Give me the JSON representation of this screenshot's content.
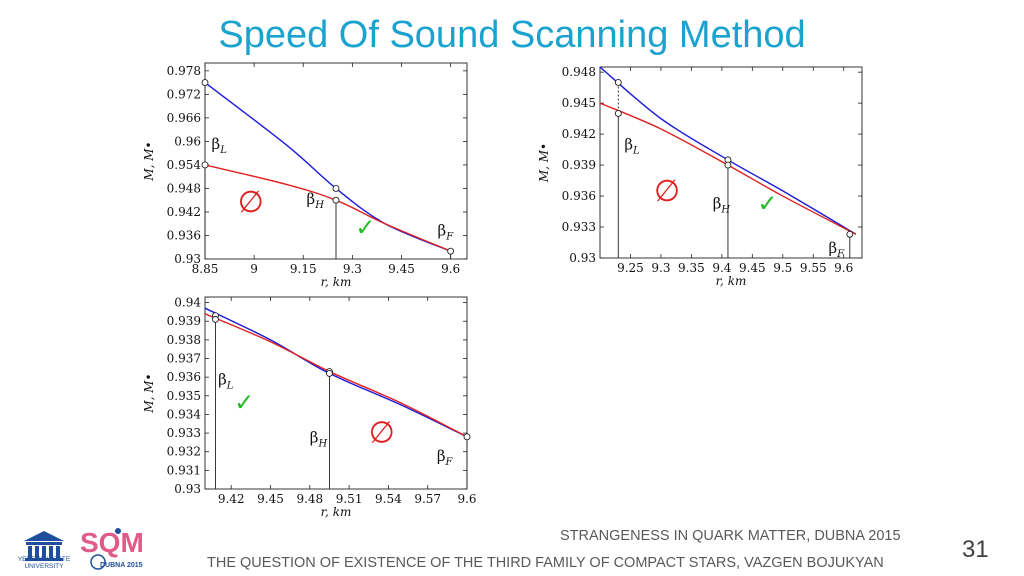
{
  "title": "Speed Of Sound Scanning Method",
  "footer": {
    "line1": "STRANGENESS IN QUARK MATTER,  DUBNA 2015",
    "line2": "THE QUESTION OF EXISTENCE OF THE THIRD FAMILY OF COMPACT STARS, VAZGEN BOJUKYAN",
    "page_number": "31"
  },
  "logos": {
    "ysu": "YEREVAN STATE UNIVERSITY",
    "sqm_main": "SQM",
    "sqm_sub": "DUBNA 2015"
  },
  "colors": {
    "title": "#1aa3cf",
    "blue_curve": "#1a1adb",
    "red_curve": "#e02020",
    "check": "#22bb22",
    "empty_set": "#e02020"
  },
  "chart_data": [
    {
      "type": "line",
      "xlabel": "r, km",
      "ylabel": "M, M•",
      "xlim": [
        8.85,
        9.65
      ],
      "ylim": [
        0.93,
        0.98
      ],
      "xticks": [
        8.85,
        9,
        9.15,
        9.3,
        9.45,
        9.6
      ],
      "xtick_labels": [
        "8.85",
        "9",
        "9.15",
        "9.3",
        "9.45",
        "9.6"
      ],
      "yticks": [
        0.93,
        0.936,
        0.942,
        0.948,
        0.954,
        0.96,
        0.966,
        0.972,
        0.978
      ],
      "ytick_labels": [
        "0.93",
        "0.936",
        "0.942",
        "0.948",
        "0.954",
        "0.96",
        "0.966",
        "0.972",
        "0.978"
      ],
      "series": [
        {
          "name": "blue",
          "x": [
            8.85,
            9.1,
            9.25,
            9.4,
            9.6
          ],
          "y": [
            0.975,
            0.959,
            0.948,
            0.939,
            0.932
          ]
        },
        {
          "name": "red",
          "x": [
            8.85,
            9.1,
            9.25,
            9.4,
            9.6
          ],
          "y": [
            0.954,
            0.949,
            0.945,
            0.939,
            0.932
          ]
        }
      ],
      "markers": [
        {
          "x": 8.85,
          "y": 0.975
        },
        {
          "x": 8.85,
          "y": 0.954
        },
        {
          "x": 9.25,
          "y": 0.948
        },
        {
          "x": 9.25,
          "y": 0.945
        },
        {
          "x": 9.6,
          "y": 0.932
        }
      ],
      "annotations": [
        {
          "text": "β",
          "sub": "L",
          "x": 8.87,
          "y": 0.958
        },
        {
          "text": "β",
          "sub": "H",
          "x": 9.16,
          "y": 0.944
        },
        {
          "text": "β",
          "sub": "F",
          "x": 9.56,
          "y": 0.936
        },
        {
          "text": "∅",
          "x": 8.99,
          "y": 0.942,
          "kind": "empty"
        },
        {
          "text": "✓",
          "x": 9.34,
          "y": 0.936,
          "kind": "check"
        }
      ]
    },
    {
      "type": "line",
      "xlabel": "r, km",
      "ylabel": "M, M•",
      "xlim": [
        9.2,
        9.63
      ],
      "ylim": [
        0.93,
        0.9485
      ],
      "xticks": [
        9.25,
        9.3,
        9.35,
        9.4,
        9.45,
        9.5,
        9.55,
        9.6
      ],
      "xtick_labels": [
        "9.25",
        "9.3",
        "9.35",
        "9.4",
        "9.45",
        "9.5",
        "9.55",
        "9.6"
      ],
      "yticks": [
        0.93,
        0.933,
        0.936,
        0.939,
        0.942,
        0.945,
        0.948
      ],
      "ytick_labels": [
        "0.93",
        "0.933",
        "0.936",
        "0.939",
        "0.942",
        "0.945",
        "0.948"
      ],
      "series": [
        {
          "name": "blue",
          "x": [
            9.2,
            9.3,
            9.41,
            9.5,
            9.62
          ],
          "y": [
            0.9485,
            0.9435,
            0.9395,
            0.9365,
            0.9323
          ]
        },
        {
          "name": "red",
          "x": [
            9.2,
            9.3,
            9.41,
            9.5,
            9.62
          ],
          "y": [
            0.945,
            0.9425,
            0.939,
            0.936,
            0.9323
          ]
        }
      ],
      "markers": [
        {
          "x": 9.23,
          "y": 0.947
        },
        {
          "x": 9.23,
          "y": 0.944
        },
        {
          "x": 9.41,
          "y": 0.9395
        },
        {
          "x": 9.41,
          "y": 0.939
        },
        {
          "x": 9.61,
          "y": 0.9323
        }
      ],
      "annotations": [
        {
          "text": "β",
          "sub": "L",
          "x": 9.24,
          "y": 0.9405
        },
        {
          "text": "β",
          "sub": "H",
          "x": 9.385,
          "y": 0.9348
        },
        {
          "text": "β",
          "sub": "F",
          "x": 9.575,
          "y": 0.9305
        },
        {
          "text": "∅",
          "x": 9.31,
          "y": 0.9355,
          "kind": "empty"
        },
        {
          "text": "✓",
          "x": 9.475,
          "y": 0.9345,
          "kind": "check"
        }
      ]
    },
    {
      "type": "line",
      "xlabel": "r, km",
      "ylabel": "M, M•",
      "xlim": [
        9.4,
        9.6
      ],
      "ylim": [
        0.93,
        0.9403
      ],
      "xticks": [
        9.42,
        9.45,
        9.48,
        9.51,
        9.54,
        9.57,
        9.6
      ],
      "xtick_labels": [
        "9.42",
        "9.45",
        "9.48",
        "9.51",
        "9.54",
        "9.57",
        "9.6"
      ],
      "yticks": [
        0.93,
        0.931,
        0.932,
        0.933,
        0.934,
        0.935,
        0.936,
        0.937,
        0.938,
        0.939,
        0.94
      ],
      "ytick_labels": [
        "0.93",
        "0.931",
        "0.932",
        "0.933",
        "0.934",
        "0.935",
        "0.936",
        "0.937",
        "0.938",
        "0.939",
        "0.94"
      ],
      "series": [
        {
          "name": "blue",
          "x": [
            9.4,
            9.45,
            9.495,
            9.55,
            9.6
          ],
          "y": [
            0.9397,
            0.938,
            0.9362,
            0.9345,
            0.9328
          ]
        },
        {
          "name": "red",
          "x": [
            9.4,
            9.45,
            9.495,
            9.55,
            9.6
          ],
          "y": [
            0.9394,
            0.9379,
            0.9363,
            0.9346,
            0.9328
          ]
        }
      ],
      "markers": [
        {
          "x": 9.408,
          "y": 0.9393
        },
        {
          "x": 9.408,
          "y": 0.9391
        },
        {
          "x": 9.495,
          "y": 0.9363
        },
        {
          "x": 9.495,
          "y": 0.9362
        },
        {
          "x": 9.6,
          "y": 0.9328
        }
      ],
      "annotations": [
        {
          "text": "β",
          "sub": "L",
          "x": 9.41,
          "y": 0.9356
        },
        {
          "text": "β",
          "sub": "H",
          "x": 9.48,
          "y": 0.9325
        },
        {
          "text": "β",
          "sub": "F",
          "x": 9.577,
          "y": 0.9315
        },
        {
          "text": "∅",
          "x": 9.535,
          "y": 0.9325,
          "kind": "empty"
        },
        {
          "text": "✓",
          "x": 9.43,
          "y": 0.9342,
          "kind": "check"
        }
      ]
    }
  ]
}
